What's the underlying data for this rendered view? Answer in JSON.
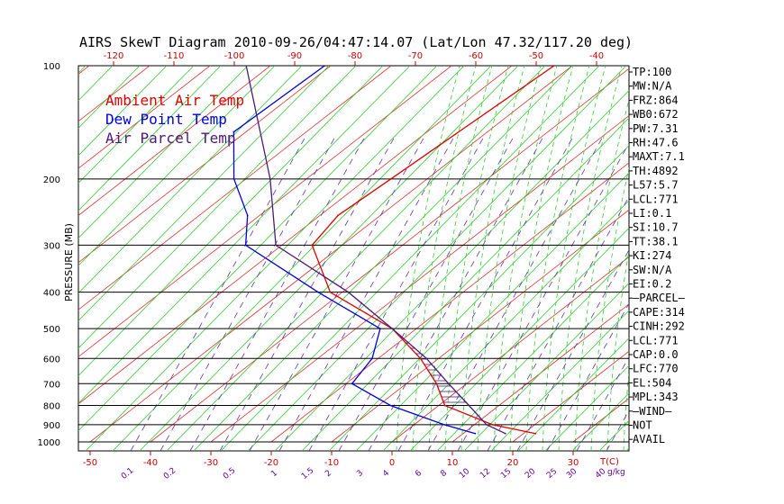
{
  "chart_data": {
    "type": "line",
    "title": "AIRS SkewT Diagram 2010-09-26/04:47:14.07 (Lat/Lon 47.32/117.20 deg)",
    "ylabel": "PRESSURE (MB)",
    "xlabel": "T(C)",
    "mixing_ratio_unit": "g/kg",
    "pressure_levels": [
      100,
      200,
      300,
      400,
      500,
      600,
      700,
      800,
      900,
      1000
    ],
    "pressure_tick_labels": [
      "100",
      "200",
      "300",
      "400",
      "500",
      "600",
      "700",
      "800",
      "900",
      "1000"
    ],
    "top_temperature_ticks": [
      "-120",
      "-110",
      "-100",
      "-90",
      "-80",
      "-70",
      "-60",
      "-50",
      "-40"
    ],
    "bottom_temperature_ticks": [
      "-50",
      "-40",
      "-30",
      "-20",
      "-10",
      "0",
      "10",
      "20",
      "30"
    ],
    "mixing_ratio_ticks": [
      "0.1",
      "0.2",
      "0.5",
      "1",
      "1.5",
      "2",
      "3",
      "4",
      "6",
      "8",
      "10",
      "12",
      "15",
      "20",
      "25",
      "30",
      "40"
    ],
    "legend": [
      {
        "label": "Ambient Air Temp",
        "color": "#dd0000"
      },
      {
        "label": "Dew Point Temp",
        "color": "#0000dd"
      },
      {
        "label": "Air Parcel Temp",
        "color": "#4a1a7a"
      }
    ],
    "series": [
      {
        "name": "Ambient Air Temp",
        "color": "#dd0000",
        "pressure": [
          100,
          200,
          250,
          300,
          400,
          500,
          600,
          700,
          800,
          900,
          950
        ],
        "temp_c": [
          -53,
          -56,
          -57,
          -55,
          -42,
          -24,
          -13,
          -5,
          1,
          13,
          22
        ]
      },
      {
        "name": "Dew Point Temp",
        "color": "#0000dd",
        "pressure": [
          100,
          150,
          200,
          250,
          300,
          400,
          500,
          600,
          700,
          800,
          900,
          950
        ],
        "temp_c": [
          -91,
          -92,
          -82,
          -72,
          -66,
          -44,
          -26,
          -21,
          -19,
          -8,
          5,
          12
        ]
      },
      {
        "name": "Air Parcel Temp",
        "color": "#4a1a7a",
        "pressure": [
          100,
          200,
          300,
          400,
          500,
          600,
          700,
          800,
          900,
          950
        ],
        "temp_c": [
          -104,
          -76,
          -61,
          -39,
          -24,
          -12,
          -3,
          5,
          12,
          17
        ]
      }
    ]
  },
  "stats": {
    "items": [
      "TP:100",
      "MW:N/A",
      "FRZ:864",
      "WB0:672",
      "PW:7.31",
      "RH:47.6",
      "MAXT:7.1",
      "TH:4892",
      "L57:5.7",
      "LCL:771",
      "LI:0.1",
      "SI:10.7",
      "TT:38.1",
      "KI:274",
      "SW:N/A",
      "EI:0.2",
      "—PARCEL—",
      "CAPE:314",
      "CINH:292",
      "LCL:771",
      "CAP:0.0",
      "LFC:770",
      "EL:504",
      "MPL:343",
      "—WIND—",
      "NOT",
      "AVAIL"
    ]
  }
}
